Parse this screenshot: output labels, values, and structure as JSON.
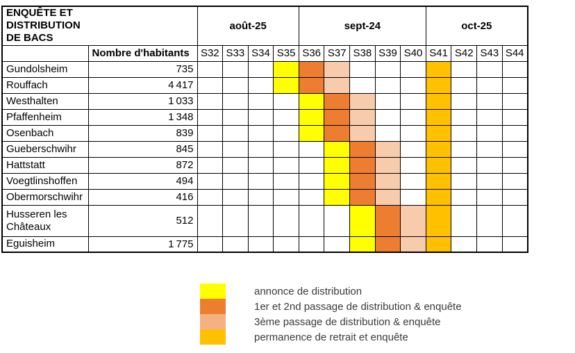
{
  "title": "ENQUÊTE ET\nDISTRIBUTION\nDE BACS",
  "colors": {
    "title-gray": "#BFBFBF",
    "header-blue": "#8EAADB",
    "annonce": "#FFFF00",
    "passage12": "#ED7D31",
    "passage3-table": "#F8CBAD",
    "passage3-legend": "#F4B183",
    "retrait": "#FFC000"
  },
  "table": {
    "pop_header": "Nombre d'habitants",
    "months": [
      {
        "label": "août-25",
        "span": 4
      },
      {
        "label": "sept-24",
        "span": 5
      },
      {
        "label": "oct-25",
        "span": 4
      }
    ],
    "weeks": [
      "S32",
      "S33",
      "S34",
      "S35",
      "S36",
      "S37",
      "S38",
      "S39",
      "S40",
      "S41",
      "S42",
      "S43",
      "S44"
    ],
    "rows": [
      {
        "name": "Gundolsheim",
        "population": "735",
        "weeks": [
          "",
          "",
          "",
          "annonce",
          "passage12",
          "passage3",
          "",
          "",
          "",
          "retrait",
          "",
          "",
          ""
        ]
      },
      {
        "name": "Rouffach",
        "population": "4 417",
        "weeks": [
          "",
          "",
          "",
          "annonce",
          "passage12",
          "passage3",
          "",
          "",
          "",
          "retrait",
          "",
          "",
          ""
        ]
      },
      {
        "name": "Westhalten",
        "population": "1 033",
        "weeks": [
          "",
          "",
          "",
          "",
          "annonce",
          "passage12",
          "passage3",
          "",
          "",
          "retrait",
          "",
          "",
          ""
        ]
      },
      {
        "name": "Pfaffenheim",
        "population": "1 348",
        "weeks": [
          "",
          "",
          "",
          "",
          "annonce",
          "passage12",
          "passage3",
          "",
          "",
          "retrait",
          "",
          "",
          ""
        ]
      },
      {
        "name": "Osenbach",
        "population": "839",
        "weeks": [
          "",
          "",
          "",
          "",
          "annonce",
          "passage12",
          "passage3",
          "",
          "",
          "retrait",
          "",
          "",
          ""
        ]
      },
      {
        "name": "Gueberschwihr",
        "population": "845",
        "weeks": [
          "",
          "",
          "",
          "",
          "",
          "annonce",
          "passage12",
          "passage3",
          "",
          "retrait",
          "",
          "",
          ""
        ]
      },
      {
        "name": "Hattstatt",
        "population": "872",
        "weeks": [
          "",
          "",
          "",
          "",
          "",
          "annonce",
          "passage12",
          "passage3",
          "",
          "retrait",
          "",
          "",
          ""
        ]
      },
      {
        "name": "Voegtlinshoffen",
        "population": "494",
        "weeks": [
          "",
          "",
          "",
          "",
          "",
          "annonce",
          "passage12",
          "passage3",
          "",
          "retrait",
          "",
          "",
          ""
        ]
      },
      {
        "name": "Obermorschwihr",
        "population": "416",
        "weeks": [
          "",
          "",
          "",
          "",
          "",
          "annonce",
          "passage12",
          "passage3",
          "",
          "retrait",
          "",
          "",
          ""
        ]
      },
      {
        "name": "Husseren les Châteaux",
        "population": "512",
        "weeks": [
          "",
          "",
          "",
          "",
          "",
          "",
          "annonce",
          "passage12",
          "passage3",
          "retrait",
          "",
          "",
          ""
        ]
      },
      {
        "name": "Eguisheim",
        "population": "1 775",
        "weeks": [
          "",
          "",
          "",
          "",
          "",
          "",
          "annonce",
          "passage12",
          "passage3",
          "retrait",
          "",
          "",
          ""
        ]
      }
    ]
  },
  "legend": {
    "items": [
      {
        "key": "annonce",
        "label": "annonce de distribution"
      },
      {
        "key": "passage12",
        "label": "1er et 2nd passage de distribution & enquête"
      },
      {
        "key": "passage3-legend",
        "label": "3ème passage de distribution & enquête"
      },
      {
        "key": "retrait",
        "label": "permanence de retrait et enquête"
      }
    ]
  }
}
